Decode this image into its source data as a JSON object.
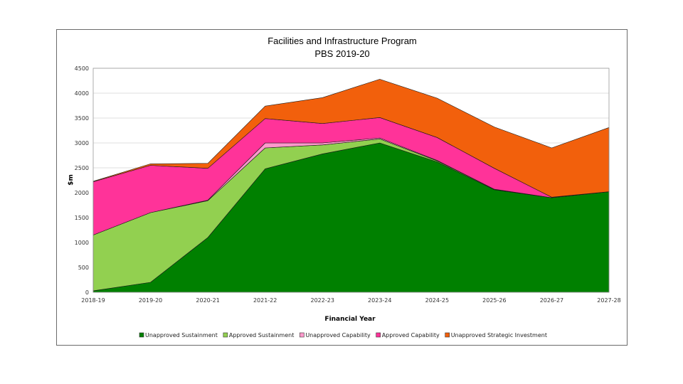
{
  "chart_data": {
    "type": "area",
    "stacked": true,
    "title": "Facilities and Infrastructure Program",
    "subtitle": "PBS 2019-20",
    "xlabel": "Financial Year",
    "ylabel": "$m",
    "ylim": [
      0,
      4500
    ],
    "yticks": [
      0,
      500,
      1000,
      1500,
      2000,
      2500,
      3000,
      3500,
      4000,
      4500
    ],
    "ytick_labels": [
      "0",
      "500",
      "1000",
      "1500",
      "2000",
      "2500",
      "3000",
      "3500",
      "4000",
      "4500"
    ],
    "categories": [
      "2018-19",
      "2019-20",
      "2020-21",
      "2021-22",
      "2022-23",
      "2023-24",
      "2024-25",
      "2025-26",
      "2026-27",
      "2027-28"
    ],
    "grid": true,
    "legend_position": "bottom",
    "series": [
      {
        "name": "Unapproved Sustainment",
        "color": "#008000",
        "values": [
          30,
          200,
          1100,
          2480,
          2780,
          3000,
          2620,
          2060,
          1900,
          2020
        ]
      },
      {
        "name": "Approved Sustainment",
        "color": "#92d050",
        "values": [
          1120,
          1400,
          740,
          420,
          180,
          80,
          20,
          10,
          0,
          0
        ]
      },
      {
        "name": "Unapproved Capability",
        "color": "#ff99cc",
        "values": [
          0,
          0,
          10,
          100,
          40,
          20,
          10,
          0,
          0,
          0
        ]
      },
      {
        "name": "Approved Capability",
        "color": "#ff3399",
        "values": [
          1070,
          950,
          640,
          490,
          390,
          410,
          460,
          420,
          10,
          0
        ]
      },
      {
        "name": "Unapproved Strategic Investment",
        "color": "#f2600c",
        "values": [
          10,
          30,
          100,
          250,
          520,
          770,
          790,
          830,
          990,
          1290
        ]
      }
    ]
  }
}
